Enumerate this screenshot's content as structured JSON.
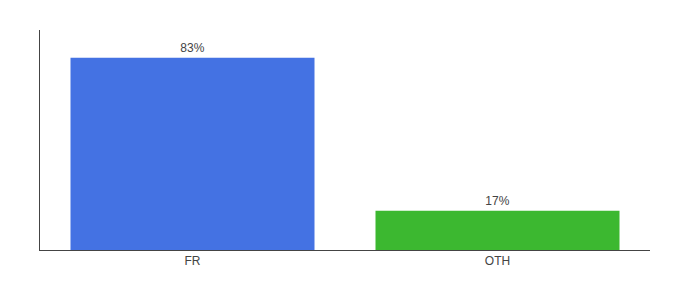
{
  "chart_data": {
    "type": "bar",
    "categories": [
      "FR",
      "OTH"
    ],
    "values": [
      83,
      17
    ],
    "value_labels": [
      "83%",
      "17%"
    ],
    "data_labels": true,
    "colors": [
      "#4472E3",
      "#3CB830"
    ],
    "ylim": [
      0,
      95
    ],
    "yticks": [],
    "tick_labels": "x",
    "grid": false
  }
}
